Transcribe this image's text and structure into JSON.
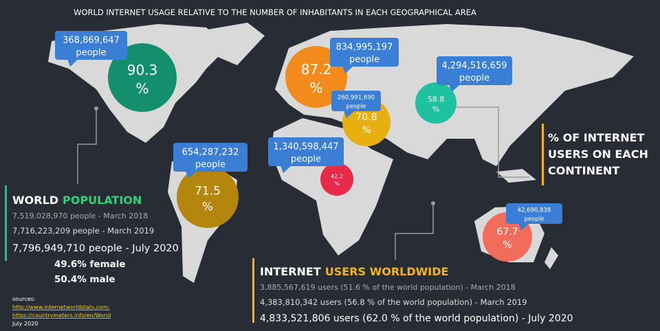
{
  "title": "WORLD INTERNET USAGE RELATIVE TO THE NUMBER OF INHABITANTS IN EACH GEOGRAPHICAL AREA",
  "regions": [
    {
      "users": "368,869,647",
      "unit": "people",
      "percent": "90.3",
      "percent_unit": "%"
    },
    {
      "users": "654,287,232",
      "unit": "people",
      "percent": "71.5",
      "percent_unit": "%"
    },
    {
      "users": "834,995,197",
      "unit": "people",
      "percent": "87.2",
      "percent_unit": "%"
    },
    {
      "users": "260,991,690",
      "unit": "people",
      "percent": "70.8",
      "percent_unit": "%"
    },
    {
      "users": "1,340,598,447",
      "unit": "people",
      "percent": "42.2",
      "percent_unit": "%"
    },
    {
      "users": "4,294,516,659",
      "unit": "people",
      "percent": "58.8",
      "percent_unit": "%"
    },
    {
      "users": "42,690,838",
      "unit": "people",
      "percent": "67.7",
      "percent_unit": "%"
    }
  ],
  "legend": {
    "lines": [
      "% OF INTERNET",
      "USERS ON EACH",
      "CONTINENT"
    ]
  },
  "world_population": {
    "title_1": "WORLD",
    "title_2": "POPULATION",
    "lines": [
      "7,519,028,970 people - March 2018",
      "7,716,223,209 people - March 2019",
      "7,796,949,710 people - July 2020"
    ],
    "female": "49.6% female",
    "male": "50.4% male"
  },
  "internet_users": {
    "title_1": "INTERNET",
    "title_2": "USERS WORLDWIDE",
    "lines": [
      "3,885,567,619 users (51.6 % of the world population) - March 2018",
      "4,383,810,342 users (56.8 % of the world population) - March 2019",
      "4,833,521,806 users (62.0 % of the world population) - July 2020"
    ]
  },
  "sources": {
    "label": "sources:",
    "links": [
      "http://www.internetworldstats.com;",
      "https://countrymeters.info/en/World"
    ],
    "date": "July 2020"
  }
}
